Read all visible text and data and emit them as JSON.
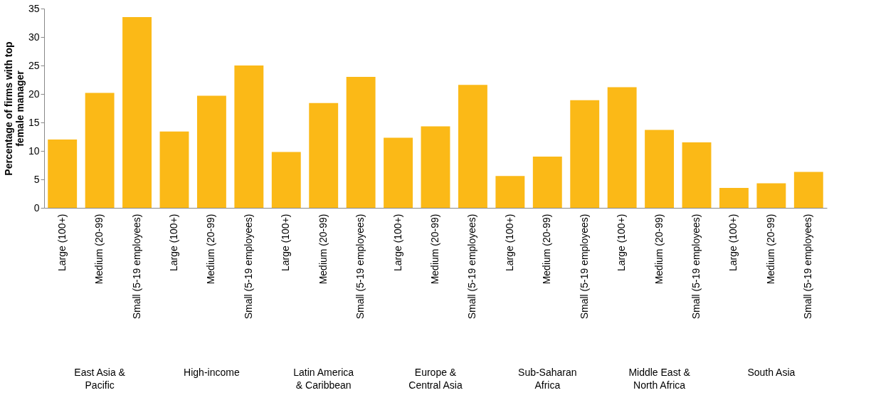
{
  "chart_data": {
    "type": "bar",
    "ylabel": "Percentage of firms with top female manager",
    "categories": [
      "Large (100+)",
      "Medium (20-99)",
      "Small (5-19 employees)",
      "Large (100+)",
      "Medium (20-99)",
      "Small (5-19 employees)",
      "Large (100+)",
      "Medium (20-99)",
      "Small (5-19 employees)",
      "Large (100+)",
      "Medium (20-99)",
      "Small (5-19 employees)",
      "Large (100+)",
      "Medium (20-99)",
      "Small (5-19 employees)",
      "Large (100+)",
      "Medium (20-99)",
      "Small (5-19 employees)",
      "Large (100+)",
      "Medium (20-99)",
      "Small (5-19 employees)"
    ],
    "values": [
      12.0,
      20.2,
      33.5,
      13.4,
      19.7,
      25.0,
      9.8,
      18.4,
      23.0,
      12.3,
      14.3,
      21.6,
      5.6,
      9.0,
      18.9,
      21.2,
      13.7,
      11.5,
      3.5,
      4.3,
      6.3
    ],
    "color": "#fbb917",
    "ylim": [
      0,
      35
    ],
    "yticks": [
      0,
      5,
      10,
      15,
      20,
      25,
      30,
      35
    ],
    "grid": false,
    "annotations": [
      "East Asia & Pacific",
      "High-income",
      "Latin America & Caribbean",
      "Europe & Central Asia",
      "Sub-Saharan Africa",
      "Middle East & North Africa",
      "South Asia"
    ]
  }
}
